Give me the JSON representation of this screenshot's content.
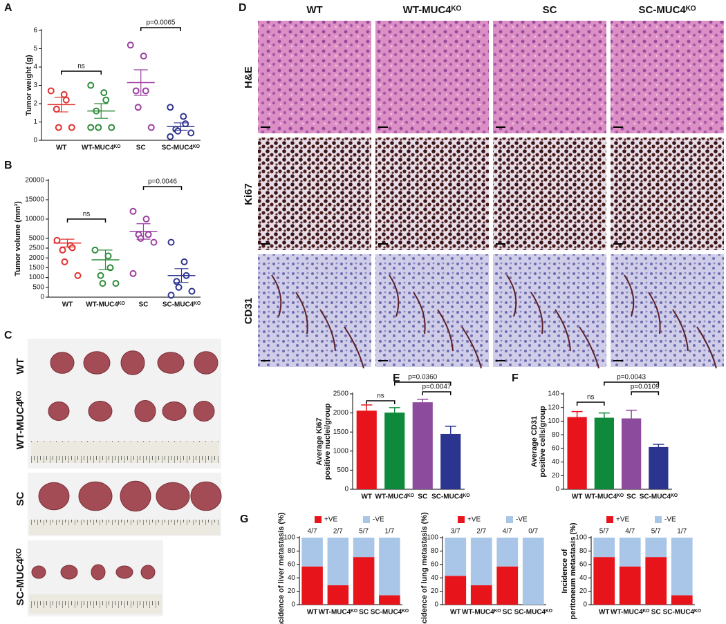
{
  "photos": {
    "panel": "C",
    "groups": [
      "WT",
      "WT-MUC4ᴷᴼ",
      "SC",
      "SC-MUC4ᴷᴼ"
    ]
  },
  "histology": {
    "panel": "D",
    "columns": [
      "WT",
      "WT-MUC4ᴷᴼ",
      "SC",
      "SC-MUC4ᴷᴼ"
    ],
    "rows": [
      "H&E",
      "Ki67",
      "CD31"
    ]
  },
  "chart_data": [
    {
      "panel": "A",
      "type": "dot",
      "ylabel": [
        "Tumor weight (g)"
      ],
      "categories": [
        "WT",
        "WT-MUC4ᴷᴼ",
        "SC",
        "SC-MUC4ᴷᴼ"
      ],
      "colors": [
        "#e0312f",
        "#2e8b3a",
        "#9b3fa0",
        "#2f3590"
      ],
      "points": [
        [
          2.7,
          2.5,
          2.2,
          1.7,
          0.7,
          0.7
        ],
        [
          3.0,
          2.6,
          2.2,
          1.6,
          0.7,
          0.7,
          0.7
        ],
        [
          5.2,
          4.6,
          2.7,
          2.7,
          1.8,
          0.7
        ],
        [
          1.8,
          1.3,
          0.9,
          0.6,
          0.5,
          0.4,
          0.2
        ]
      ],
      "mean": [
        1.95,
        1.6,
        3.15,
        0.75
      ],
      "sem": [
        0.4,
        0.4,
        0.7,
        0.2
      ],
      "ylim": [
        0,
        6
      ],
      "yticks": [
        0,
        1,
        2,
        3,
        4,
        5,
        6
      ],
      "annotations": [
        "ns",
        "p=0.0065"
      ]
    },
    {
      "panel": "B",
      "type": "dot",
      "ylabel": [
        "Tumor volume (mm³)"
      ],
      "categories": [
        "WT",
        "WT-MUC4ᴷᴼ",
        "SC",
        "SC-MUC4ᴷᴼ"
      ],
      "colors": [
        "#e0312f",
        "#2e8b3a",
        "#9b3fa0",
        "#2f3590"
      ],
      "points": [
        [
          4500,
          3200,
          2600,
          2400,
          1800,
          1100
        ],
        [
          2400,
          2100,
          1500,
          1100,
          700,
          700
        ],
        [
          12000,
          10000,
          6000,
          6000,
          5000,
          4000,
          1200
        ],
        [
          4000,
          1800,
          1100,
          800,
          500,
          300,
          100
        ]
      ],
      "mean": [
        3800,
        1900,
        6800,
        1100
      ],
      "sem": [
        1000,
        500,
        2000,
        350
      ],
      "ylim": [
        0,
        20000
      ],
      "ysegments": [
        [
          0,
          2500
        ],
        [
          2500,
          20000
        ]
      ],
      "yticks": [
        0,
        500,
        1000,
        1500,
        2000,
        2500,
        5000,
        10000,
        15000,
        20000
      ],
      "annotations": [
        "ns",
        "p=0.0046"
      ]
    },
    {
      "panel": "E",
      "type": "bar",
      "ylabel": [
        "Average Ki67",
        "positive nuclei/group"
      ],
      "categories": [
        "WT",
        "WT-MUC4ᴷᴼ",
        "SC",
        "SC-MUC4ᴷᴼ"
      ],
      "colors": [
        "#e8141b",
        "#0f8a3c",
        "#8c4b9c",
        "#2b3590"
      ],
      "values": [
        2060,
        2010,
        2280,
        1450
      ],
      "errors": [
        150,
        130,
        80,
        200
      ],
      "ylim": [
        0,
        2500
      ],
      "yticks": [
        0,
        500,
        1000,
        1500,
        2000,
        2500
      ],
      "annotations": [
        "ns",
        "p=0.0360",
        "p=0.0047"
      ]
    },
    {
      "panel": "F",
      "type": "bar",
      "ylabel": [
        "Average CD31",
        "positive cells/group"
      ],
      "categories": [
        "WT",
        "WT-MUC4ᴷᴼ",
        "SC",
        "SC-MUC4ᴷᴼ"
      ],
      "colors": [
        "#e8141b",
        "#0f8a3c",
        "#8c4b9c",
        "#2b3590"
      ],
      "values": [
        106,
        105,
        104,
        62
      ],
      "errors": [
        8,
        7,
        12,
        4
      ],
      "ylim": [
        0,
        140
      ],
      "yticks": [
        0,
        20,
        40,
        60,
        80,
        100,
        120,
        140
      ],
      "annotations": [
        "ns",
        "p=0.0043",
        "p=0.0109"
      ]
    },
    {
      "panel": "G",
      "type": "stacked",
      "ylabel": [
        "Incidence of liver metastasis (%)"
      ],
      "categories": [
        "WT",
        "WT-MUC4ᴷᴼ",
        "SC",
        "SC-MUC4ᴷᴼ"
      ],
      "series": [
        {
          "name": "+VE",
          "color": "#e8141b",
          "values": [
            57,
            29,
            71,
            14
          ]
        },
        {
          "name": "-VE",
          "color": "#a9c6e8",
          "values": [
            43,
            71,
            29,
            86
          ]
        }
      ],
      "fractions": [
        "4/7",
        "2/7",
        "5/7",
        "1/7"
      ],
      "ylim": [
        0,
        100
      ],
      "yticks": [
        0,
        20,
        40,
        60,
        80,
        100
      ]
    },
    {
      "type": "stacked",
      "ylabel": [
        "Incidence of lung metastasis (%)"
      ],
      "categories": [
        "WT",
        "WT-MUC4ᴷᴼ",
        "SC",
        "SC-MUC4ᴷᴼ"
      ],
      "series": [
        {
          "name": "+VE",
          "color": "#e8141b",
          "values": [
            43,
            29,
            57,
            0
          ]
        },
        {
          "name": "-VE",
          "color": "#a9c6e8",
          "values": [
            57,
            71,
            43,
            100
          ]
        }
      ],
      "fractions": [
        "3/7",
        "2/7",
        "4/7",
        "0/7"
      ],
      "ylim": [
        0,
        100
      ],
      "yticks": [
        0,
        20,
        40,
        60,
        80,
        100
      ]
    },
    {
      "type": "stacked",
      "ylabel": [
        "Incidence of",
        "peritoneum metastasis (%)"
      ],
      "categories": [
        "WT",
        "WT-MUC4ᴷᴼ",
        "SC",
        "SC-MUC4ᴷᴼ"
      ],
      "series": [
        {
          "name": "+VE",
          "color": "#e8141b",
          "values": [
            71,
            57,
            71,
            14
          ]
        },
        {
          "name": "-VE",
          "color": "#a9c6e8",
          "values": [
            29,
            43,
            29,
            86
          ]
        }
      ],
      "fractions": [
        "5/7",
        "4/7",
        "5/7",
        "1/7"
      ],
      "ylim": [
        0,
        100
      ],
      "yticks": [
        0,
        20,
        40,
        60,
        80,
        100
      ]
    }
  ]
}
